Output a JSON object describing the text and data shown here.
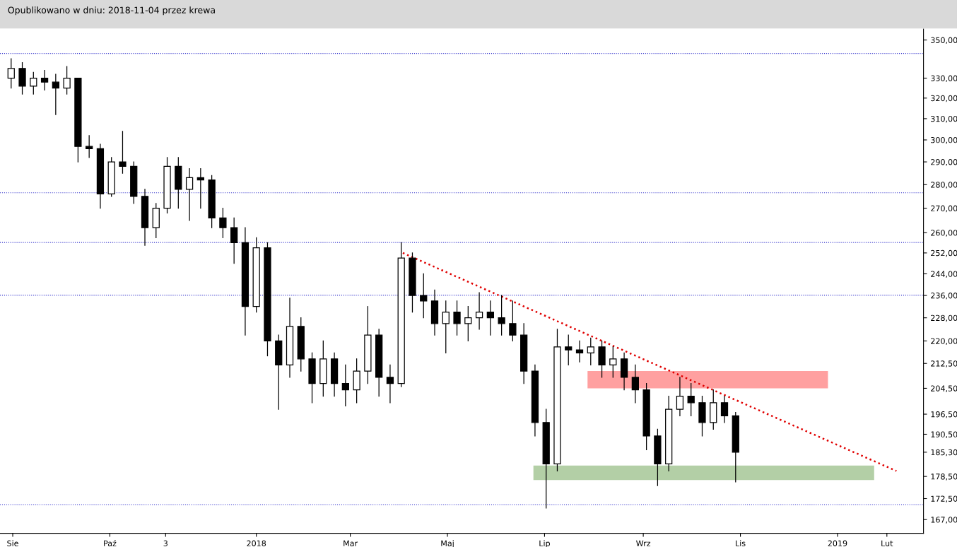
{
  "chart_data": {
    "type": "candlestick",
    "title": "Opublikowano w dniu: 2018-11-04 przez krewa",
    "log": "y",
    "grid": false,
    "xlim": [
      "2017-07-24",
      "2019-02-24"
    ],
    "xticks": [
      {
        "value": "2017-08-01",
        "label": "Sie"
      },
      {
        "value": "2017-10-01",
        "label": "Paź"
      },
      {
        "value": "2017-11-05",
        "label": "3"
      },
      {
        "value": "2018-01-01",
        "label": "2018"
      },
      {
        "value": "2018-03-01",
        "label": "Mar"
      },
      {
        "value": "2018-05-01",
        "label": "Maj"
      },
      {
        "value": "2018-07-01",
        "label": "Lip"
      },
      {
        "value": "2018-09-01",
        "label": "Wrz"
      },
      {
        "value": "2018-11-01",
        "label": "Lis"
      },
      {
        "value": "2019-01-01",
        "label": "2019"
      },
      {
        "value": "2019-02-01",
        "label": "Lut"
      }
    ],
    "ylim": [
      163.5,
      356
    ],
    "yticks": [
      {
        "value": 350,
        "label": "350,00"
      },
      {
        "value": 330,
        "label": "330,00"
      },
      {
        "value": 320,
        "label": "320,00"
      },
      {
        "value": 310,
        "label": "310,00"
      },
      {
        "value": 300,
        "label": "300,00"
      },
      {
        "value": 290,
        "label": "290,00"
      },
      {
        "value": 280,
        "label": "280,00"
      },
      {
        "value": 270,
        "label": "270,00"
      },
      {
        "value": 260,
        "label": "260,00"
      },
      {
        "value": 252,
        "label": "252,00"
      },
      {
        "value": 244,
        "label": "244,00"
      },
      {
        "value": 236,
        "label": "236,00"
      },
      {
        "value": 228,
        "label": "228,00"
      },
      {
        "value": 220,
        "label": "220,00"
      },
      {
        "value": 212.5,
        "label": "212,50"
      },
      {
        "value": 204.5,
        "label": "204,50"
      },
      {
        "value": 196.5,
        "label": "196,50"
      },
      {
        "value": 190.5,
        "label": "190,50"
      },
      {
        "value": 185.3,
        "label": "185,30"
      },
      {
        "value": 178.5,
        "label": "178,50"
      },
      {
        "value": 172.5,
        "label": "172,50"
      },
      {
        "value": 167,
        "label": "167,00"
      }
    ],
    "ref_lines": [
      {
        "axis": "y",
        "value": 342.8,
        "color": "#3333cc",
        "line_style": "dotted"
      },
      {
        "axis": "y",
        "value": 276.5,
        "color": "#3333cc",
        "line_style": "dotted"
      },
      {
        "axis": "y",
        "value": 256.1,
        "color": "#3333cc",
        "line_style": "dotted"
      },
      {
        "axis": "y",
        "value": 236.1,
        "color": "#3333cc",
        "line_style": "dotted"
      },
      {
        "axis": "y",
        "value": 170.9,
        "color": "#3333cc",
        "line_style": "dotted"
      }
    ],
    "series": [
      {
        "type": "line",
        "color": "#ffa0a0",
        "x": [
          "2018-07-28",
          "2018-12-26"
        ],
        "values": [
          null,
          null
        ],
        "lower": [
          204.5,
          204.5
        ],
        "upper": [
          210,
          210
        ]
      },
      {
        "type": "line",
        "color": "#b3cfa6",
        "x": [
          "2018-06-24",
          "2019-01-24"
        ],
        "values": [
          null,
          null
        ],
        "lower": [
          177.5,
          177.5
        ],
        "upper": [
          181.5,
          181.5
        ]
      },
      {
        "type": "line",
        "color": "#e00000",
        "line_style": "dotted",
        "x": [
          "2018-04-03",
          "2019-02-07"
        ],
        "values": [
          252,
          180
        ]
      },
      {
        "type": "candlestick",
        "color": "#000000",
        "x": [
          "2017-07-31",
          "2017-08-07",
          "2017-08-14",
          "2017-08-21",
          "2017-08-28",
          "2017-09-04",
          "2017-09-11",
          "2017-09-18",
          "2017-09-25",
          "2017-10-02",
          "2017-10-09",
          "2017-10-16",
          "2017-10-23",
          "2017-10-30",
          "2017-11-06",
          "2017-11-13",
          "2017-11-20",
          "2017-11-27",
          "2017-12-04",
          "2017-12-11",
          "2017-12-18",
          "2017-12-25",
          "2018-01-01",
          "2018-01-08",
          "2018-01-15",
          "2018-01-22",
          "2018-01-29",
          "2018-02-05",
          "2018-02-12",
          "2018-02-19",
          "2018-02-26",
          "2018-03-05",
          "2018-03-12",
          "2018-03-19",
          "2018-03-26",
          "2018-04-02",
          "2018-04-09",
          "2018-04-16",
          "2018-04-23",
          "2018-04-30",
          "2018-05-07",
          "2018-05-14",
          "2018-05-21",
          "2018-05-28",
          "2018-06-04",
          "2018-06-11",
          "2018-06-18",
          "2018-06-25",
          "2018-07-02",
          "2018-07-09",
          "2018-07-16",
          "2018-07-23",
          "2018-07-30",
          "2018-08-06",
          "2018-08-13",
          "2018-08-20",
          "2018-08-27",
          "2018-09-03",
          "2018-09-10",
          "2018-09-17",
          "2018-09-24",
          "2018-10-01",
          "2018-10-08",
          "2018-10-15",
          "2018-10-22",
          "2018-10-29"
        ],
        "ohlc": [
          [
            330,
            340,
            325,
            335
          ],
          [
            335,
            338,
            322,
            326
          ],
          [
            326,
            333,
            322,
            330
          ],
          [
            330,
            334,
            324,
            328
          ],
          [
            328,
            332,
            312,
            325
          ],
          [
            325,
            336,
            322,
            330
          ],
          [
            330,
            330,
            290,
            297
          ],
          [
            297,
            302,
            292,
            296
          ],
          [
            296,
            298,
            270,
            276
          ],
          [
            276,
            292,
            275,
            290
          ],
          [
            290,
            304,
            285,
            288
          ],
          [
            288,
            290,
            272,
            275
          ],
          [
            275,
            278,
            255,
            262
          ],
          [
            262,
            272,
            258,
            270
          ],
          [
            270,
            292,
            268,
            288
          ],
          [
            288,
            292,
            270,
            278
          ],
          [
            278,
            287,
            265,
            283
          ],
          [
            283,
            287,
            270,
            282
          ],
          [
            282,
            284,
            262,
            266
          ],
          [
            266,
            270,
            258,
            262
          ],
          [
            262,
            266,
            248,
            256
          ],
          [
            256,
            262,
            222,
            232
          ],
          [
            232,
            258,
            230,
            254
          ],
          [
            254,
            256,
            215,
            220
          ],
          [
            220,
            222,
            198,
            212
          ],
          [
            212,
            235,
            208,
            225
          ],
          [
            225,
            228,
            210,
            214
          ],
          [
            214,
            216,
            200,
            206
          ],
          [
            206,
            220,
            202,
            214
          ],
          [
            214,
            216,
            202,
            206
          ],
          [
            206,
            212,
            199,
            204
          ],
          [
            204,
            214,
            200,
            210
          ],
          [
            210,
            232,
            206,
            222
          ],
          [
            222,
            224,
            202,
            208
          ],
          [
            208,
            212,
            200,
            206
          ],
          [
            206,
            256,
            205,
            250
          ],
          [
            250,
            252,
            230,
            236
          ],
          [
            236,
            244,
            228,
            234
          ],
          [
            234,
            238,
            222,
            226
          ],
          [
            226,
            234,
            216,
            230
          ],
          [
            230,
            234,
            222,
            226
          ],
          [
            226,
            232,
            220,
            228
          ],
          [
            228,
            237,
            224,
            230
          ],
          [
            230,
            234,
            222,
            228
          ],
          [
            228,
            236,
            222,
            226
          ],
          [
            226,
            234,
            220,
            222
          ],
          [
            222,
            226,
            206,
            210
          ],
          [
            210,
            212,
            190,
            194
          ],
          [
            194,
            198,
            170,
            182
          ],
          [
            182,
            224,
            180,
            218
          ],
          [
            218,
            222,
            212,
            217
          ],
          [
            217,
            220,
            213,
            216
          ],
          [
            216,
            221,
            212,
            218
          ],
          [
            218,
            220,
            208,
            212
          ],
          [
            212,
            218,
            208,
            214
          ],
          [
            214,
            216,
            204,
            208
          ],
          [
            208,
            212,
            200,
            204
          ],
          [
            204,
            206,
            186,
            190
          ],
          [
            190,
            192,
            176,
            182
          ],
          [
            182,
            202,
            180,
            198
          ],
          [
            198,
            208,
            196,
            202
          ],
          [
            202,
            206,
            196,
            200
          ],
          [
            200,
            202,
            190,
            194
          ],
          [
            194,
            204,
            192,
            200
          ],
          [
            200,
            202,
            194,
            196
          ],
          [
            196,
            197,
            177,
            185.3
          ]
        ]
      }
    ]
  }
}
